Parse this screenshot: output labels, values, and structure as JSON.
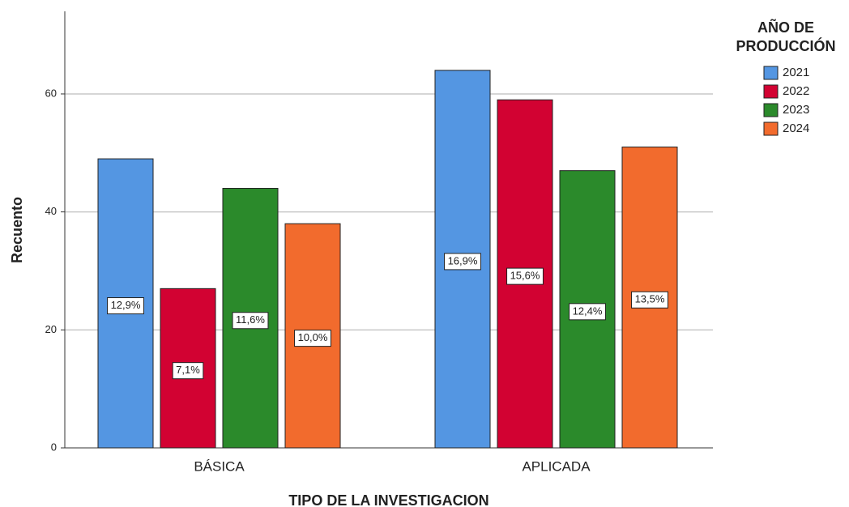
{
  "chart_data": {
    "type": "grouped_bar",
    "x_label": "TIPO DE LA INVESTIGACION",
    "y_label": "Recuento",
    "legend_title": [
      "AÑO DE",
      "PRODUCCIÓN"
    ],
    "legend_position": "right",
    "categories": [
      "BÁSICA",
      "APLICADA"
    ],
    "series": [
      {
        "name": "2021",
        "color": "#5496e2",
        "values": [
          49,
          64
        ],
        "percent_labels": [
          "12,9%",
          "16,9%"
        ]
      },
      {
        "name": "2022",
        "color": "#d20232",
        "values": [
          27,
          59
        ],
        "percent_labels": [
          "7,1%",
          "15,6%"
        ]
      },
      {
        "name": "2023",
        "color": "#2b8a2b",
        "values": [
          44,
          47
        ],
        "percent_labels": [
          "11,6%",
          "12,4%"
        ]
      },
      {
        "name": "2024",
        "color": "#f26b2d",
        "values": [
          38,
          51
        ],
        "percent_labels": [
          "10,0%",
          "13,5%"
        ]
      }
    ],
    "ylim": [
      0,
      74
    ],
    "yticks": [
      0,
      20,
      40,
      60
    ],
    "grid": true
  }
}
